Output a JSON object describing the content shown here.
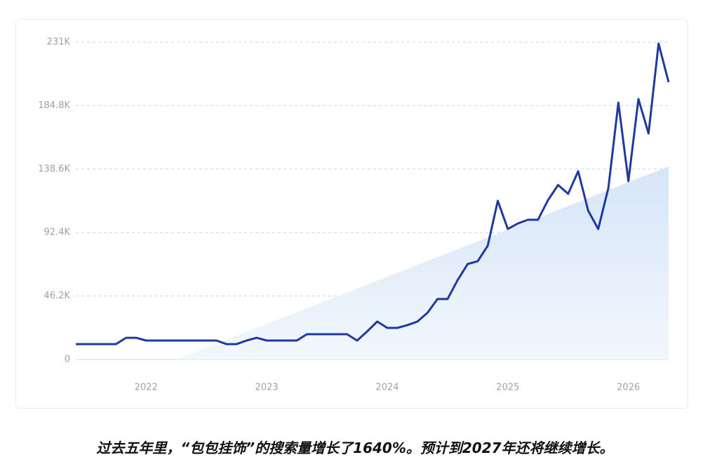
{
  "chart_data": {
    "type": "line",
    "categories": [
      null,
      null,
      null,
      null,
      null,
      null,
      null,
      "2022",
      null,
      null,
      null,
      null,
      null,
      null,
      null,
      null,
      null,
      null,
      null,
      "2023",
      null,
      null,
      null,
      null,
      null,
      null,
      null,
      null,
      null,
      null,
      null,
      "2024",
      null,
      null,
      null,
      null,
      null,
      null,
      null,
      null,
      null,
      null,
      null,
      "2025",
      null,
      null,
      null,
      null,
      null,
      null,
      null,
      null,
      null,
      null,
      null,
      "2026",
      null,
      null,
      null,
      null
    ],
    "series": [
      {
        "color": "#1e3aa0",
        "values": [
          11.2,
          11.2,
          11.2,
          11.2,
          11.2,
          15.8,
          15.8,
          13.8,
          13.8,
          13.8,
          13.8,
          13.8,
          13.8,
          13.8,
          13.8,
          11.2,
          11.2,
          13.8,
          15.8,
          13.8,
          13.8,
          13.8,
          13.8,
          18.4,
          18.4,
          18.4,
          18.4,
          18.4,
          13.8,
          20.4,
          27.6,
          23,
          23,
          25,
          27.6,
          34,
          44,
          44,
          57.7,
          69.5,
          71.5,
          82.8,
          115.5,
          95,
          99,
          101.7,
          101.7,
          116,
          127,
          120.6,
          137,
          108.3,
          95,
          124.7,
          187,
          129.8,
          189.6,
          164.5,
          230,
          201.8
        ]
      },
      {
        "color": "#dde9f8",
        "fill": true,
        "values": [
          null,
          null,
          null,
          null,
          null,
          null,
          null,
          null,
          null,
          null,
          0,
          2.9,
          5.7,
          8.6,
          11.5,
          14.3,
          17.2,
          20.1,
          22.9,
          25.8,
          28.7,
          31.5,
          34.4,
          37.3,
          40.1,
          43,
          45.9,
          48.7,
          51.6,
          54.5,
          57.3,
          60.2,
          63.1,
          65.9,
          68.8,
          71.7,
          74.5,
          77.4,
          80.3,
          83.1,
          86,
          88.9,
          91.7,
          94.6,
          97.5,
          100.3,
          103.2,
          106.1,
          108.9,
          111.8,
          114.7,
          117.5,
          120.4,
          123.3,
          126.1,
          129,
          131.9,
          134.7,
          137.6,
          140.5
        ]
      }
    ],
    "ylim": [
      0,
      231
    ],
    "yticks": [
      0,
      {
        "value": 46.2,
        "label": "46.2K"
      },
      {
        "value": 92.4,
        "label": "92.4K"
      },
      {
        "value": 138.6,
        "label": "138.6K"
      },
      {
        "value": 184.8,
        "label": "184.8K"
      },
      {
        "value": 231,
        "label": "231K"
      }
    ],
    "grid": true,
    "caption": "过去五年里，“包包挂饰”的搜索量增长了1640%。预计到2027年还将继续增长。"
  }
}
